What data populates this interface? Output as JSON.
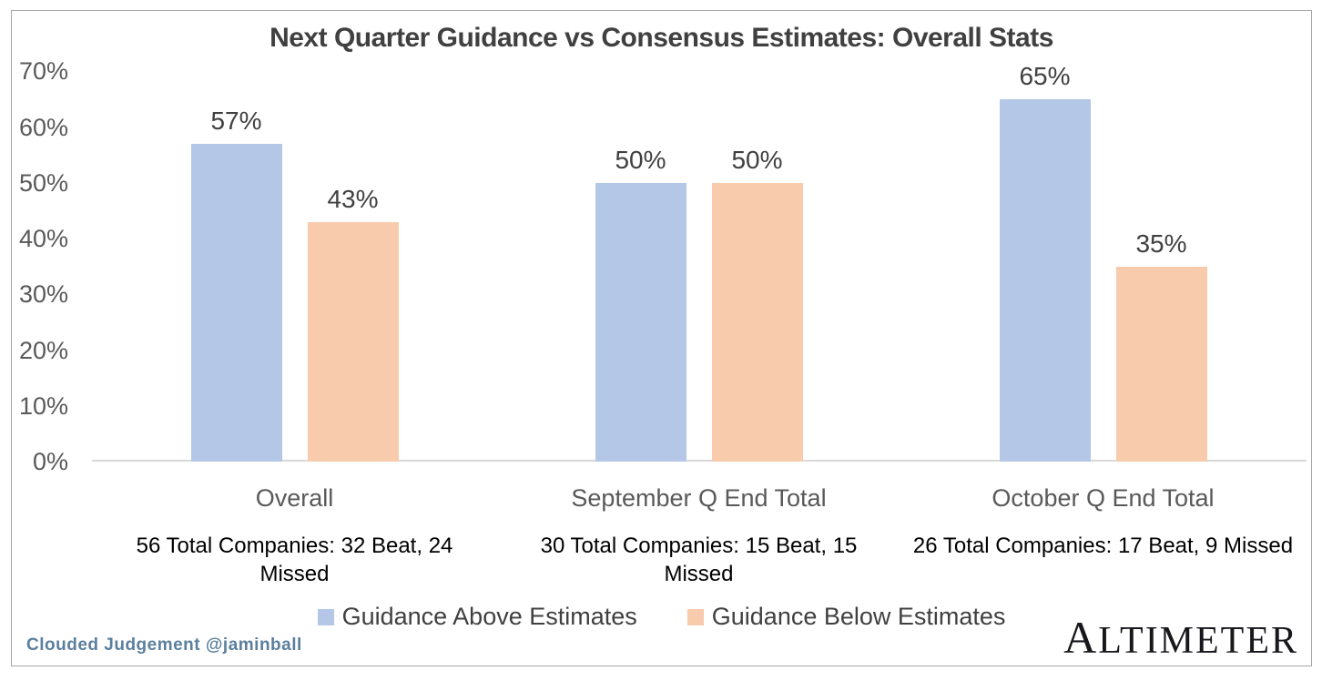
{
  "chart_data": {
    "type": "bar",
    "title": "Next Quarter Guidance vs Consensus Estimates: Overall Stats",
    "categories": [
      "Overall",
      "September Q End Total",
      "October Q End Total"
    ],
    "category_notes": [
      "56 Total Companies: 32 Beat, 24 Missed",
      "30 Total Companies: 15 Beat, 15 Missed",
      "26 Total Companies: 17 Beat, 9 Missed"
    ],
    "series": [
      {
        "name": "Guidance Above Estimates",
        "color": "#b4c7e7",
        "values": [
          57,
          50,
          65
        ],
        "labels": [
          "57%",
          "50%",
          "65%"
        ]
      },
      {
        "name": "Guidance Below Estimates",
        "color": "#f8cbad",
        "values": [
          43,
          50,
          35
        ],
        "labels": [
          "43%",
          "50%",
          "35%"
        ]
      }
    ],
    "xlabel": "",
    "ylabel": "",
    "ylim": [
      0,
      70
    ],
    "yticks": [
      "0%",
      "10%",
      "20%",
      "30%",
      "40%",
      "50%",
      "60%",
      "70%"
    ],
    "grid": false,
    "legend_position": "bottom-center",
    "value_suffix": "%"
  },
  "footer": {
    "credit": "Clouded Judgement @jaminball",
    "logo_text": "ALTIMETER"
  },
  "colors": {
    "series_above": "#b4c7e7",
    "series_below": "#f8cbad",
    "title_text": "#404040",
    "axis_text": "#595959",
    "note_text": "#000000",
    "baseline": "#d9d9d9",
    "frame_border": "#a6a6a6",
    "credit_text": "#5b7f9e",
    "logo_text": "#17171c"
  }
}
